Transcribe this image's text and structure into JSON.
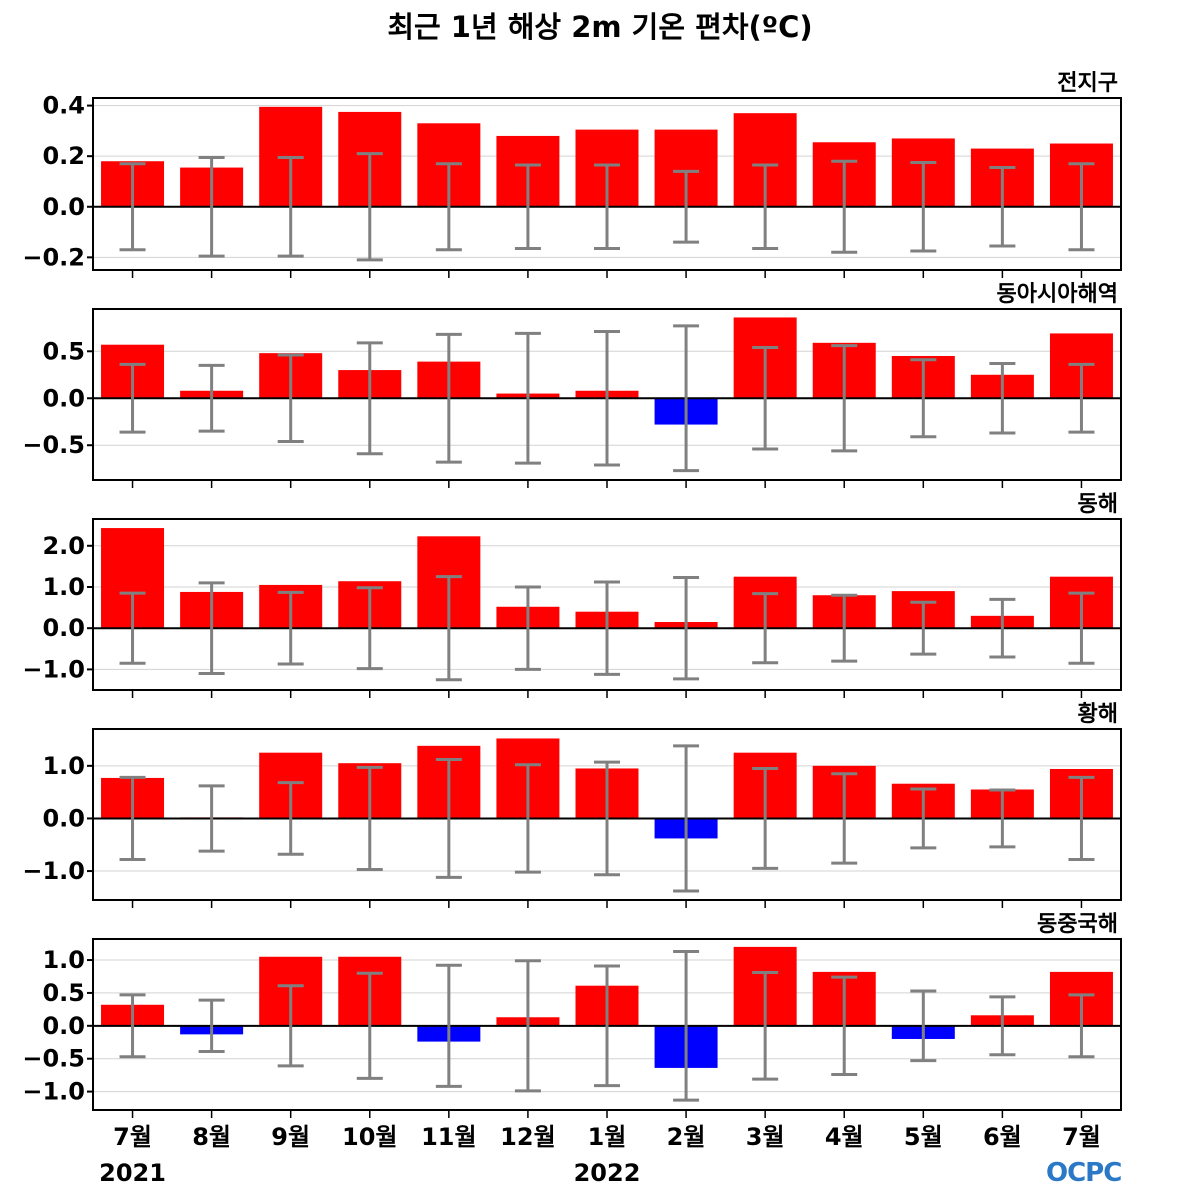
{
  "title": "최근 1년 해상 2m 기온 편차(ºC)",
  "logo_text": "OCPC",
  "colors": {
    "positive": "#ff0000",
    "negative": "#0000ff",
    "errorbar": "#808080",
    "zero_line": "#000000",
    "grid": "#d3d3d3"
  },
  "chart_data": {
    "type": "bar",
    "title": "최근 1년 해상 2m 기온 편차(ºC)",
    "categories": [
      "7월",
      "8월",
      "9월",
      "10월",
      "11월",
      "12월",
      "1월",
      "2월",
      "3월",
      "4월",
      "5월",
      "6월",
      "7월"
    ],
    "year_labels": [
      {
        "index": 0,
        "label": "2021"
      },
      {
        "index": 6,
        "label": "2022"
      }
    ],
    "grid": true,
    "panels": [
      {
        "name": "전지구",
        "ylim": [
          -0.25,
          0.43
        ],
        "yticks": [
          -0.2,
          0.0,
          0.2,
          0.4
        ],
        "ytick_labels": [
          "−0.2",
          "0.0",
          "0.2",
          "0.4"
        ],
        "values": [
          0.18,
          0.155,
          0.395,
          0.375,
          0.33,
          0.28,
          0.305,
          0.305,
          0.37,
          0.255,
          0.27,
          0.23,
          0.25
        ],
        "error": [
          0.17,
          0.195,
          0.195,
          0.21,
          0.17,
          0.165,
          0.165,
          0.14,
          0.165,
          0.18,
          0.175,
          0.155,
          0.17
        ]
      },
      {
        "name": "동아시아해역",
        "ylim": [
          -0.87,
          0.95
        ],
        "yticks": [
          -0.5,
          0.0,
          0.5
        ],
        "ytick_labels": [
          "−0.5",
          "0.0",
          "0.5"
        ],
        "values": [
          0.57,
          0.08,
          0.48,
          0.3,
          0.39,
          0.05,
          0.08,
          -0.28,
          0.86,
          0.59,
          0.45,
          0.25,
          0.69
        ],
        "error": [
          0.36,
          0.35,
          0.46,
          0.59,
          0.68,
          0.69,
          0.71,
          0.77,
          0.54,
          0.56,
          0.41,
          0.37,
          0.36
        ]
      },
      {
        "name": "동해",
        "ylim": [
          -1.5,
          2.65
        ],
        "yticks": [
          -1.0,
          0.0,
          1.0,
          2.0
        ],
        "ytick_labels": [
          "−1.0",
          "0.0",
          "1.0",
          "2.0"
        ],
        "values": [
          2.43,
          0.88,
          1.05,
          1.14,
          2.23,
          0.52,
          0.4,
          0.15,
          1.25,
          0.8,
          0.9,
          0.3,
          1.25
        ],
        "error": [
          0.85,
          1.1,
          0.87,
          0.98,
          1.25,
          1.0,
          1.12,
          1.23,
          0.84,
          0.8,
          0.63,
          0.7,
          0.85
        ]
      },
      {
        "name": "황해",
        "ylim": [
          -1.55,
          1.7
        ],
        "yticks": [
          -1.0,
          0.0,
          1.0
        ],
        "ytick_labels": [
          "−1.0",
          "0.0",
          "1.0"
        ],
        "values": [
          0.77,
          0.02,
          1.25,
          1.05,
          1.38,
          1.52,
          0.95,
          -0.38,
          1.25,
          1.0,
          0.66,
          0.55,
          0.94
        ],
        "error": [
          0.78,
          0.62,
          0.68,
          0.97,
          1.12,
          1.02,
          1.07,
          1.38,
          0.95,
          0.85,
          0.56,
          0.54,
          0.78
        ]
      },
      {
        "name": "동중국해",
        "ylim": [
          -1.28,
          1.32
        ],
        "yticks": [
          -1.0,
          -0.5,
          0.0,
          0.5,
          1.0
        ],
        "ytick_labels": [
          "−1.0",
          "−0.5",
          "0.0",
          "0.5",
          "1.0"
        ],
        "values": [
          0.32,
          -0.13,
          1.05,
          1.05,
          -0.24,
          0.13,
          0.61,
          -0.64,
          1.2,
          0.82,
          -0.2,
          0.16,
          0.82
        ],
        "error": [
          0.47,
          0.39,
          0.61,
          0.8,
          0.92,
          0.99,
          0.91,
          1.13,
          0.81,
          0.74,
          0.53,
          0.44,
          0.47
        ]
      }
    ]
  }
}
